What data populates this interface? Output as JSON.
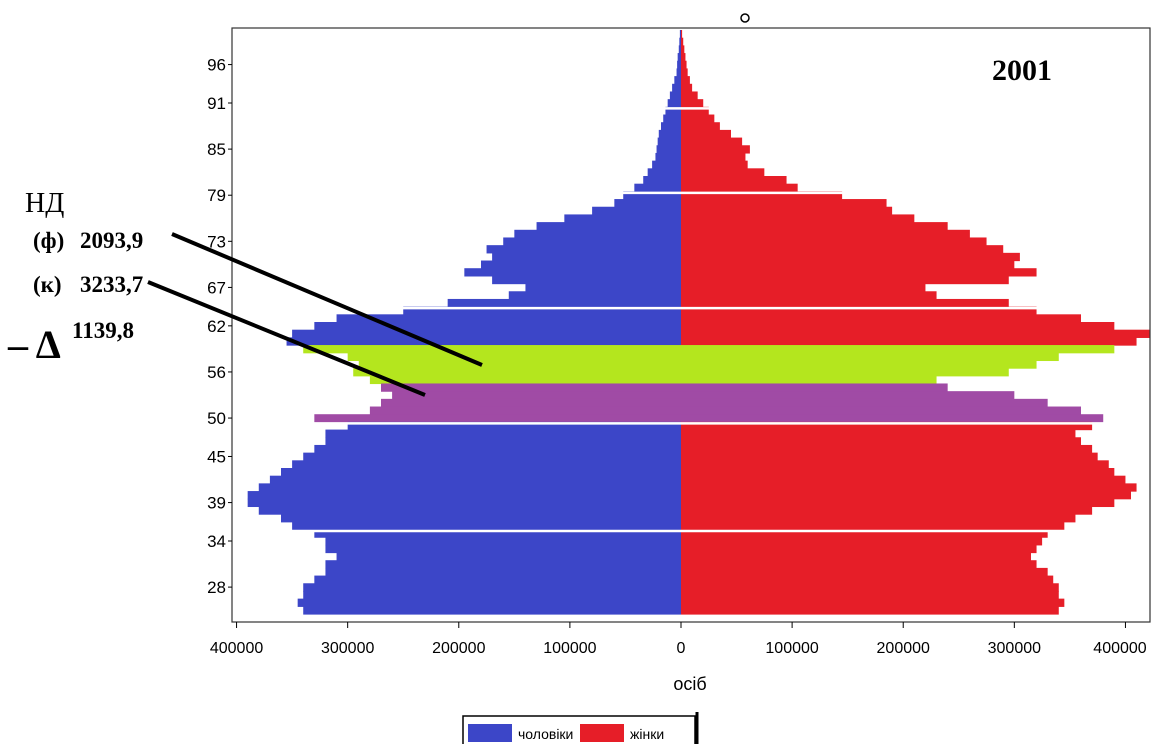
{
  "chart_data": {
    "type": "bar",
    "orientation": "horizontal",
    "title": "2001",
    "xlabel": "осіб",
    "xlim": [
      -400000,
      430000
    ],
    "x_ticks": [
      {
        "value": -400000,
        "label": "400000"
      },
      {
        "value": -300000,
        "label": "300000"
      },
      {
        "value": -200000,
        "label": "200000"
      },
      {
        "value": -100000,
        "label": "100000"
      },
      {
        "value": 0,
        "label": "0"
      },
      {
        "value": 100000,
        "label": "100000"
      },
      {
        "value": 200000,
        "label": "200000"
      },
      {
        "value": 300000,
        "label": "300000"
      },
      {
        "value": 400000,
        "label": "400000"
      }
    ],
    "y_ticks": [
      "96",
      "91",
      "85",
      "79",
      "73",
      "67",
      "62",
      "56",
      "50",
      "45",
      "39",
      "34",
      "28"
    ],
    "ages": [
      100,
      99,
      98,
      97,
      96,
      95,
      94,
      93,
      92,
      91,
      90,
      89,
      88,
      87,
      86,
      85,
      84,
      83,
      82,
      81,
      80,
      79,
      78,
      77,
      76,
      75,
      74,
      73,
      72,
      71,
      70,
      69,
      68,
      67,
      66,
      65,
      64,
      63,
      62,
      61,
      60,
      59,
      58,
      57,
      56,
      55,
      54,
      53,
      52,
      51,
      50,
      49,
      48,
      47,
      46,
      45,
      44,
      43,
      42,
      41,
      40,
      39,
      38,
      37,
      36,
      35,
      34,
      33,
      32,
      31,
      30,
      29,
      28,
      27,
      26,
      25
    ],
    "series": [
      {
        "name": "чоловіки",
        "color": "#3c46c8",
        "values": [
          -1000,
          -1500,
          -2000,
          -3000,
          -3500,
          -4000,
          -6000,
          -8000,
          -10000,
          -12000,
          -14000,
          -16000,
          -18000,
          -20000,
          -21000,
          -22000,
          -23000,
          -26000,
          -30000,
          -34000,
          -42000,
          -52000,
          -60000,
          -80000,
          -105000,
          -130000,
          -150000,
          -160000,
          -175000,
          -170000,
          -180000,
          -195000,
          -170000,
          -140000,
          -155000,
          -210000,
          -250000,
          -310000,
          -330000,
          -350000,
          -355000,
          -340000,
          -300000,
          -290000,
          -295000,
          -280000,
          -270000,
          -260000,
          -270000,
          -280000,
          -330000,
          -300000,
          -320000,
          -320000,
          -330000,
          -340000,
          -350000,
          -360000,
          -370000,
          -380000,
          -390000,
          -390000,
          -380000,
          -360000,
          -350000,
          -330000,
          -320000,
          -320000,
          -310000,
          -320000,
          -320000,
          -330000,
          -340000,
          -340000,
          -345000,
          -340000
        ],
        "highlight": {
          "55": "#b4e61e",
          "56": "#b4e61e",
          "57": "#b4e61e",
          "58": "#b4e61e",
          "59": "#b4e61e",
          "50": "#a04ba5",
          "51": "#a04ba5",
          "52": "#a04ba5",
          "53": "#a04ba5",
          "54": "#a04ba5"
        }
      },
      {
        "name": "жінки",
        "color": "#e61e28",
        "values": [
          1000,
          2000,
          3000,
          4000,
          5000,
          6000,
          8000,
          10000,
          15000,
          20000,
          25000,
          30000,
          35000,
          45000,
          55000,
          62000,
          58000,
          60000,
          75000,
          95000,
          105000,
          145000,
          185000,
          190000,
          210000,
          240000,
          260000,
          275000,
          290000,
          305000,
          300000,
          320000,
          295000,
          220000,
          230000,
          295000,
          320000,
          360000,
          390000,
          430000,
          410000,
          390000,
          340000,
          320000,
          295000,
          230000,
          240000,
          300000,
          330000,
          360000,
          380000,
          370000,
          355000,
          360000,
          370000,
          375000,
          385000,
          390000,
          400000,
          410000,
          405000,
          390000,
          370000,
          355000,
          345000,
          330000,
          325000,
          320000,
          315000,
          320000,
          330000,
          335000,
          340000,
          340000,
          345000,
          340000
        ],
        "highlight": {
          "55": "#b4e61e",
          "56": "#b4e61e",
          "57": "#b4e61e",
          "58": "#b4e61e",
          "59": "#b4e61e",
          "50": "#a04ba5",
          "51": "#a04ba5",
          "52": "#a04ba5",
          "53": "#a04ba5",
          "54": "#a04ba5"
        }
      }
    ],
    "separator_ages": [
      90,
      79,
      64,
      49,
      35
    ],
    "legend": {
      "placement": "bottom-center",
      "items": [
        "чоловіки",
        "жінки"
      ]
    },
    "annotations": {
      "nd": "НД",
      "f_prefix": "(ф)",
      "f_value": "2093,9",
      "k_prefix": "(к)",
      "k_value": "3233,7",
      "delta_prefix": "– Δ",
      "delta_value": "1139,8"
    },
    "grid": false
  }
}
